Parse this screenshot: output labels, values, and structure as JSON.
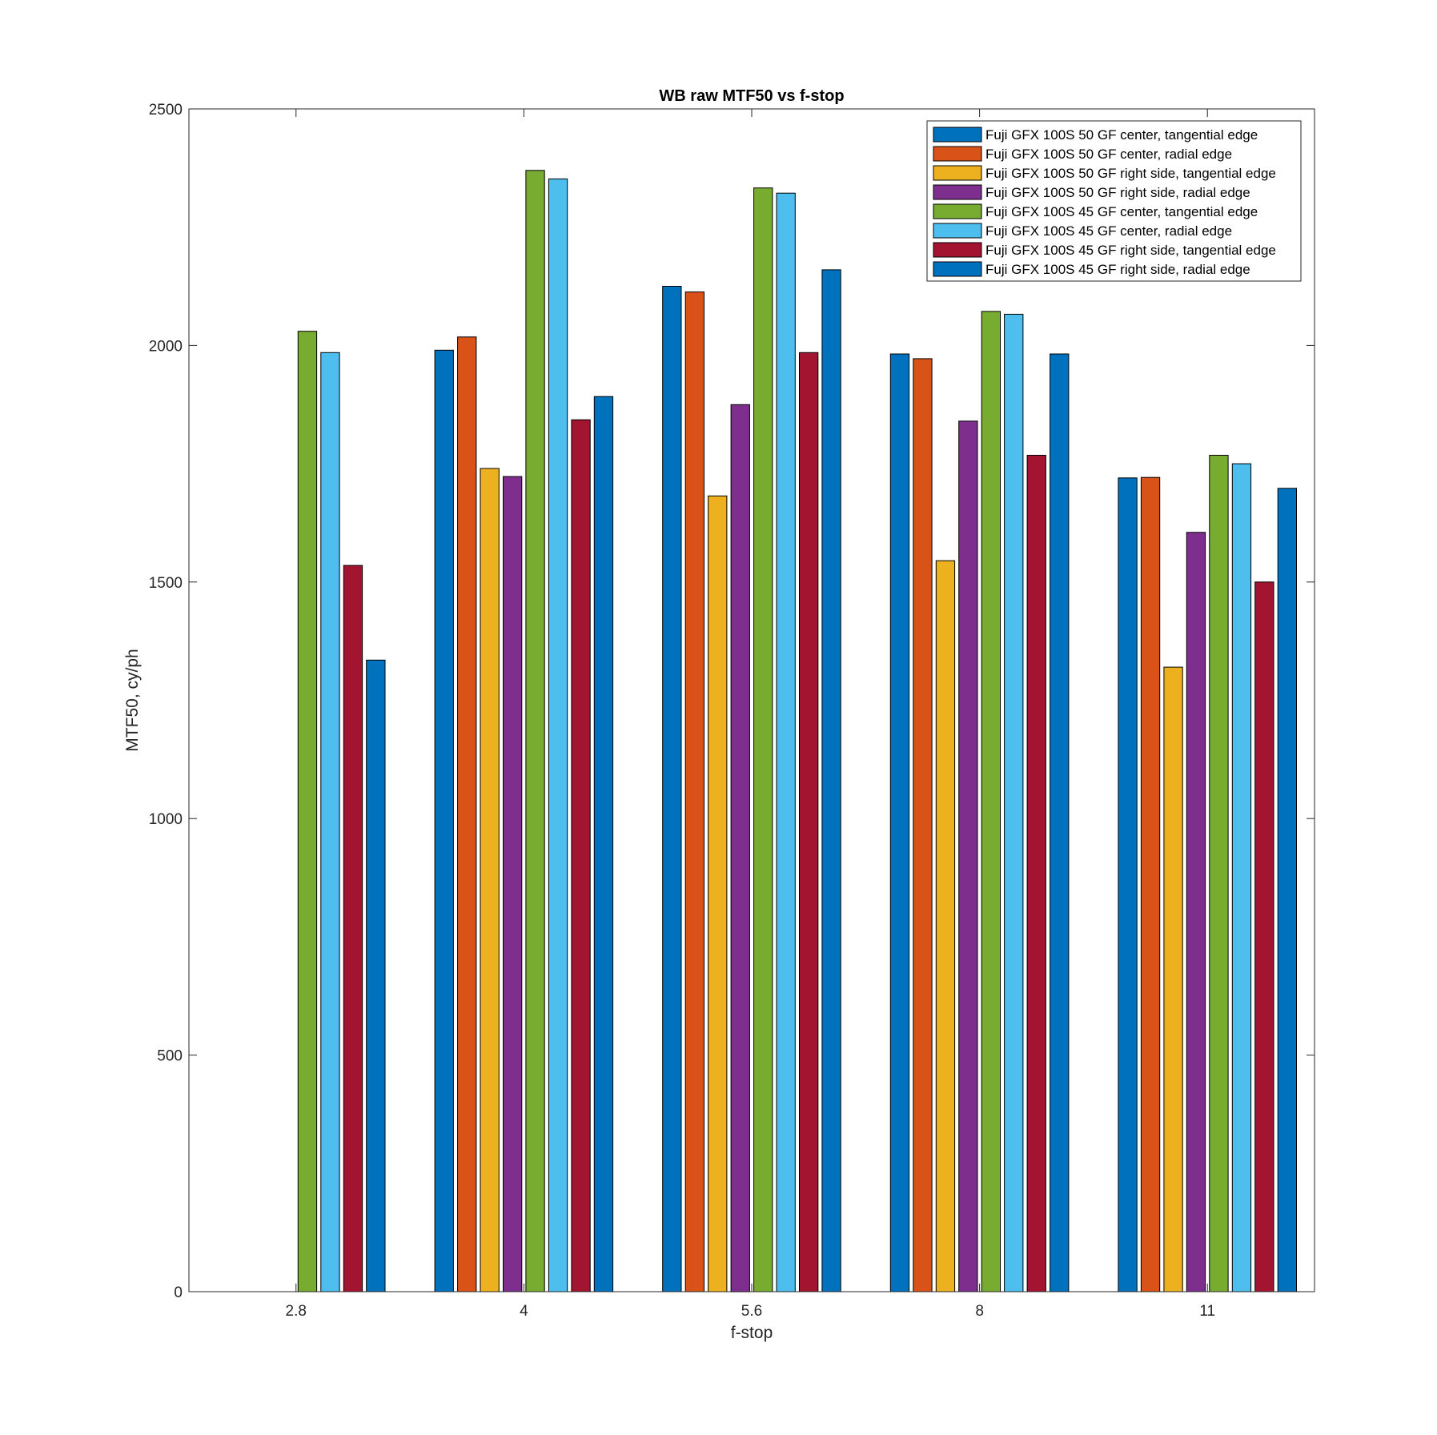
{
  "chart_data": {
    "type": "bar",
    "title": "WB raw MTF50 vs f-stop",
    "xlabel": "f-stop",
    "ylabel": "MTF50, cy/ph",
    "categories": [
      "2.8",
      "4",
      "5.6",
      "8",
      "11"
    ],
    "ylim": [
      0,
      2500
    ],
    "yticks": [
      0,
      500,
      1000,
      1500,
      2000,
      2500
    ],
    "legend_position": "top-right",
    "grid": false,
    "series": [
      {
        "name": "Fuji GFX 100S 50 GF center, tangential edge",
        "color": "#0072BD",
        "values": [
          null,
          1990,
          2125,
          1982,
          1720
        ]
      },
      {
        "name": "Fuji GFX 100S 50 GF center, radial edge",
        "color": "#D95319",
        "values": [
          null,
          2018,
          2113,
          1972,
          1721
        ]
      },
      {
        "name": "Fuji GFX 100S 50 GF right side, tangential edge",
        "color": "#EDB120",
        "values": [
          null,
          1740,
          1682,
          1545,
          1320
        ]
      },
      {
        "name": "Fuji GFX 100S 50 GF right side, radial edge",
        "color": "#7E2F8E",
        "values": [
          null,
          1723,
          1875,
          1840,
          1605
        ]
      },
      {
        "name": "Fuji GFX 100S 45 GF center, tangential edge",
        "color": "#77AC30",
        "values": [
          2030,
          2370,
          2333,
          2072,
          1768
        ]
      },
      {
        "name": "Fuji GFX 100S 45 GF center, radial edge",
        "color": "#4DBEEE",
        "values": [
          1985,
          2352,
          2322,
          2066,
          1750
        ]
      },
      {
        "name": "Fuji GFX 100S 45 GF right side, tangential edge",
        "color": "#A2142F",
        "values": [
          1535,
          1843,
          1985,
          1768,
          1500
        ]
      },
      {
        "name": "Fuji GFX 100S 45 GF right side, radial edge",
        "color": "#0072BD",
        "values": [
          1335,
          1892,
          2160,
          1982,
          1698
        ]
      }
    ]
  }
}
